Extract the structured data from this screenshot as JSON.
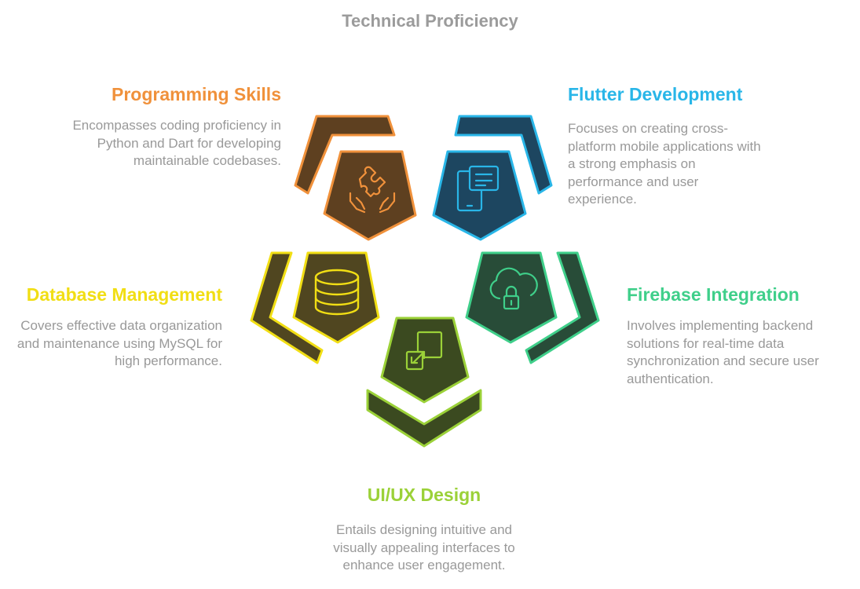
{
  "title": "Technical Proficiency",
  "segments": [
    {
      "id": "programming",
      "heading": "Programming Skills",
      "description": "Encompasses coding proficiency in Python and Dart for developing maintainable codebases.",
      "icon": "puzzle-hands-icon",
      "color": "#f0913b",
      "fill": "#5e4020"
    },
    {
      "id": "flutter",
      "heading": "Flutter Development",
      "description": "Focuses on creating cross-platform mobile applications with a strong emphasis on performance and user experience.",
      "icon": "mobile-app-icon",
      "color": "#29b6e8",
      "fill": "#1d4660"
    },
    {
      "id": "database",
      "heading": "Database Management",
      "description": "Covers effective data organization and maintenance using MySQL for high performance.",
      "icon": "database-icon",
      "color": "#f1de14",
      "fill": "#504620"
    },
    {
      "id": "firebase",
      "heading": "Firebase Integration",
      "description": "Involves implementing backend solutions for real-time data synchronization and secure user authentication.",
      "icon": "cloud-lock-icon",
      "color": "#3fcf8a",
      "fill": "#284c38"
    },
    {
      "id": "uiux",
      "heading": "UI/UX Design",
      "description": "Entails designing intuitive and visually appealing interfaces to enhance user engagement.",
      "icon": "resize-arrows-icon",
      "color": "#9bd138",
      "fill": "#3b4a20"
    }
  ]
}
